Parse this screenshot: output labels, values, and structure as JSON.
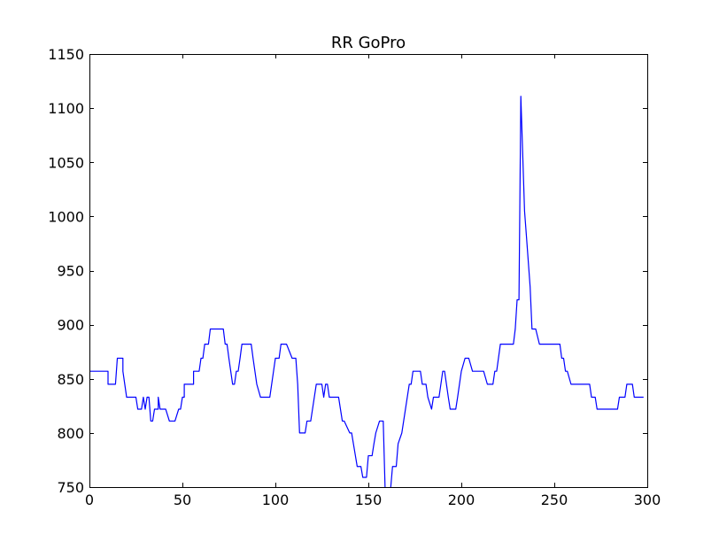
{
  "chart_data": {
    "type": "line",
    "title": "RR GoPro",
    "xlabel": "",
    "ylabel": "",
    "xlim": [
      0,
      300
    ],
    "ylim": [
      750,
      1150
    ],
    "xticks": [
      0,
      50,
      100,
      150,
      200,
      250,
      300
    ],
    "yticks": [
      750,
      800,
      850,
      900,
      950,
      1000,
      1050,
      1100,
      1150
    ],
    "xtick_labels": [
      "0",
      "50",
      "100",
      "150",
      "200",
      "250",
      "300"
    ],
    "ytick_labels": [
      "750",
      "800",
      "850",
      "900",
      "950",
      "1000",
      "1050",
      "1100",
      "1150"
    ],
    "grid": false,
    "legend": "none",
    "series": [
      {
        "color": "#0000ff",
        "x": [
          0,
          10,
          10,
          14,
          15,
          18,
          18,
          19,
          20,
          20,
          25,
          26,
          26,
          28,
          29,
          30,
          31,
          32,
          33,
          34,
          35,
          37,
          37,
          38,
          39,
          41,
          43,
          43,
          46,
          48,
          49,
          50,
          51,
          51,
          56,
          56,
          58,
          59,
          60,
          61,
          62,
          64,
          65,
          66,
          70,
          72,
          73,
          74,
          75,
          77,
          78,
          79,
          80,
          81,
          82,
          83,
          87,
          88,
          90,
          92,
          97,
          98,
          99,
          100,
          102,
          103,
          106,
          106,
          109,
          110,
          111,
          112,
          113,
          116,
          117,
          119,
          122,
          123,
          124,
          125,
          126,
          127,
          128,
          129,
          130,
          131,
          133,
          134,
          135,
          136,
          137,
          140,
          141,
          144,
          146,
          147,
          149,
          150,
          152,
          153,
          154,
          156,
          157,
          158,
          159,
          162,
          163,
          165,
          166,
          168,
          172,
          173,
          174,
          175,
          176,
          178,
          179,
          180,
          181,
          182,
          184,
          185,
          188,
          190,
          191,
          192,
          193,
          194,
          195,
          197,
          198,
          200,
          202,
          204,
          206,
          208,
          212,
          214,
          215,
          216,
          217,
          218,
          219,
          221,
          222,
          226,
          227,
          228,
          229,
          230,
          231,
          232,
          234,
          235,
          237,
          238,
          240,
          242,
          243,
          248,
          253,
          254,
          255,
          256,
          257,
          259,
          260,
          268,
          269,
          270,
          272,
          273,
          274,
          283,
          284,
          285,
          288,
          289,
          292,
          293,
          296,
          297,
          298
        ],
        "y": [
          857,
          857,
          845,
          845,
          869,
          869,
          857,
          845,
          833,
          833,
          833,
          822,
          822,
          822,
          833,
          822,
          833,
          833,
          811,
          811,
          822,
          822,
          833,
          822,
          822,
          822,
          811,
          811,
          811,
          822,
          822,
          833,
          833,
          845,
          845,
          857,
          857,
          857,
          869,
          869,
          882,
          882,
          896,
          896,
          896,
          896,
          882,
          882,
          869,
          845,
          845,
          857,
          857,
          869,
          882,
          882,
          882,
          869,
          845,
          833,
          833,
          845,
          857,
          869,
          869,
          882,
          882,
          882,
          869,
          869,
          869,
          845,
          800,
          800,
          811,
          811,
          845,
          845,
          845,
          845,
          833,
          845,
          845,
          833,
          833,
          833,
          833,
          833,
          822,
          811,
          811,
          800,
          800,
          769,
          769,
          759,
          759,
          779,
          779,
          790,
          800,
          811,
          811,
          811,
          749,
          749,
          769,
          769,
          790,
          800,
          845,
          845,
          857,
          857,
          857,
          857,
          845,
          845,
          845,
          833,
          822,
          833,
          833,
          857,
          857,
          845,
          833,
          822,
          822,
          822,
          833,
          857,
          869,
          869,
          857,
          857,
          857,
          845,
          845,
          845,
          845,
          857,
          857,
          882,
          882,
          882,
          882,
          882,
          896,
          923,
          923,
          1111,
          1005,
          982,
          935,
          896,
          896,
          882,
          882,
          882,
          882,
          869,
          869,
          857,
          857,
          845,
          845,
          845,
          845,
          833,
          833,
          822,
          822,
          822,
          822,
          833,
          833,
          845,
          845,
          833,
          833,
          833,
          833
        ]
      }
    ]
  }
}
